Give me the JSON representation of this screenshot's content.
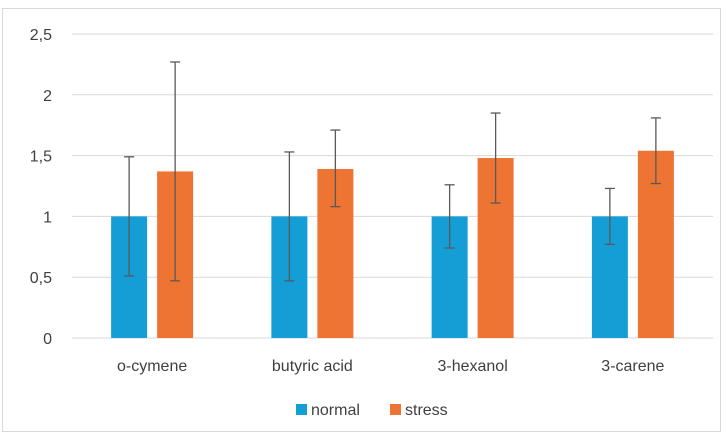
{
  "chart_data": {
    "type": "bar",
    "categories": [
      "o-cymene",
      "butyric acid",
      "3-hexanol",
      "3-carene"
    ],
    "series": [
      {
        "name": "normal",
        "color": "#159ED6",
        "values": [
          1,
          1,
          1,
          1
        ],
        "error_low": [
          0.51,
          0.47,
          0.74,
          0.77
        ],
        "error_high": [
          1.49,
          1.53,
          1.26,
          1.23
        ]
      },
      {
        "name": "stress",
        "color": "#ED7433",
        "values": [
          1.37,
          1.39,
          1.48,
          1.54
        ],
        "error_low": [
          0.47,
          1.08,
          1.11,
          1.27
        ],
        "error_high": [
          2.27,
          1.71,
          1.85,
          1.81
        ]
      }
    ],
    "y_ticks": [
      "0",
      "0,5",
      "1",
      "1,5",
      "2",
      "2,5"
    ],
    "y_tick_values": [
      0,
      0.5,
      1,
      1.5,
      2,
      2.5
    ],
    "ylim": [
      0,
      2.5
    ],
    "grid": "horizontal",
    "legend_position": "bottom",
    "error_bar_color": "#595959",
    "gridline_color": "#d9d9d9"
  }
}
